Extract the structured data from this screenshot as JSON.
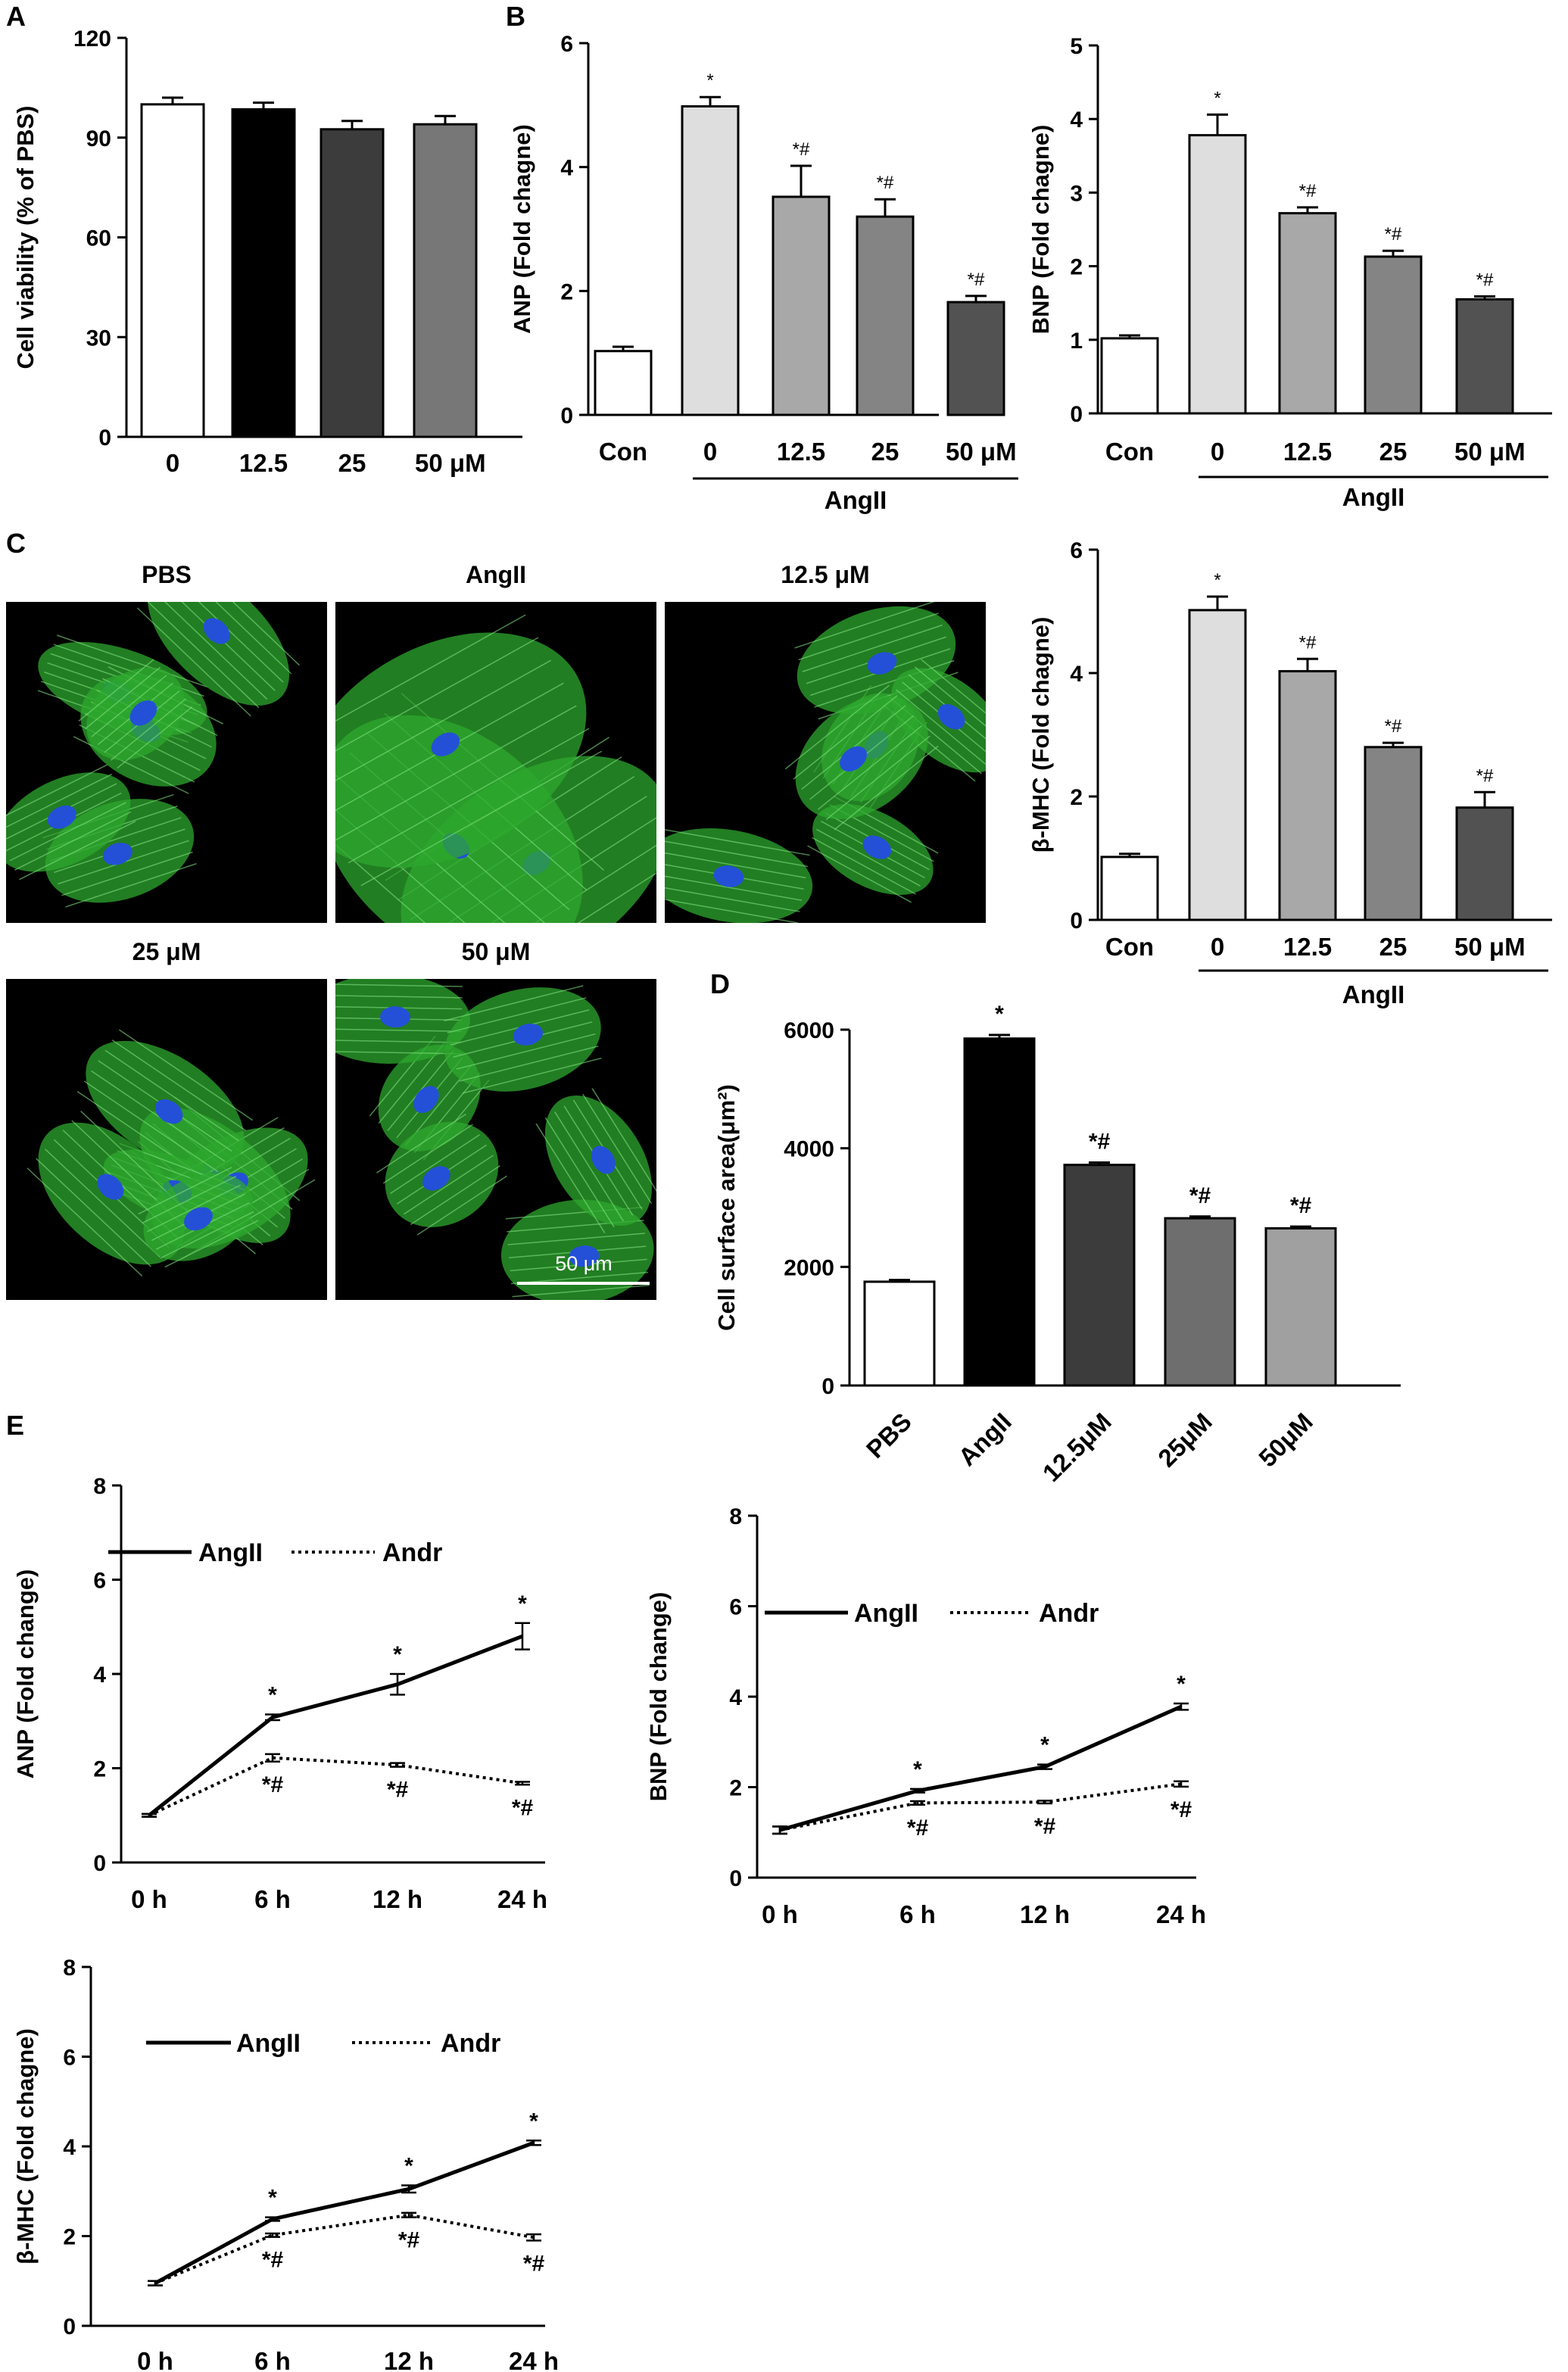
{
  "panel_letters": [
    "A",
    "B",
    "C",
    "D",
    "E"
  ],
  "chart_data": [
    {
      "id": "A",
      "type": "bar",
      "ylabel": "Cell viability (% of PBS)",
      "ylim": [
        0,
        120
      ],
      "yticks": [
        0,
        30,
        60,
        90,
        120
      ],
      "categories": [
        "0",
        "12.5",
        "25",
        "50 μM"
      ],
      "values": [
        100,
        98.5,
        92.5,
        94
      ],
      "errors": [
        2,
        2,
        2.5,
        2.5
      ],
      "colors": [
        "#ffffff",
        "#000000",
        "#3c3c3c",
        "#777777"
      ],
      "annotations": [
        "",
        "",
        "",
        ""
      ],
      "group_label": ""
    },
    {
      "id": "B-ANP",
      "type": "bar",
      "ylabel": "ANP (Fold chagne)",
      "ylim": [
        0,
        6
      ],
      "yticks": [
        0,
        2,
        4,
        6
      ],
      "categories": [
        "Con",
        "0",
        "12.5",
        "25",
        "50 μM"
      ],
      "values": [
        1.03,
        4.98,
        3.52,
        3.2,
        1.82
      ],
      "errors": [
        0.07,
        0.15,
        0.5,
        0.28,
        0.1
      ],
      "colors": [
        "#ffffff",
        "#dedede",
        "#a8a8a8",
        "#848484",
        "#525252"
      ],
      "annotations": [
        "",
        "*",
        "*#",
        "*#",
        "*#"
      ],
      "group_label": "AngII"
    },
    {
      "id": "B-BNP",
      "type": "bar",
      "ylabel": "BNP (Fold chagne)",
      "ylim": [
        0,
        5
      ],
      "yticks": [
        0,
        1,
        2,
        3,
        4,
        5
      ],
      "categories": [
        "Con",
        "0",
        "12.5",
        "25",
        "50 μM"
      ],
      "values": [
        1.02,
        3.78,
        2.72,
        2.13,
        1.55
      ],
      "errors": [
        0.04,
        0.28,
        0.08,
        0.08,
        0.04
      ],
      "colors": [
        "#ffffff",
        "#dedede",
        "#a8a8a8",
        "#848484",
        "#525252"
      ],
      "annotations": [
        "",
        "*",
        "*#",
        "*#",
        "*#"
      ],
      "group_label": "AngII"
    },
    {
      "id": "C-MHC",
      "type": "bar",
      "ylabel": "β-MHC (Fold chagne)",
      "ylim": [
        0,
        6
      ],
      "yticks": [
        0,
        2,
        4,
        6
      ],
      "categories": [
        "Con",
        "0",
        "12.5",
        "25",
        "50 μM"
      ],
      "values": [
        1.02,
        5.02,
        4.03,
        2.8,
        1.82
      ],
      "errors": [
        0.05,
        0.22,
        0.2,
        0.07,
        0.25
      ],
      "colors": [
        "#ffffff",
        "#dedede",
        "#a8a8a8",
        "#848484",
        "#525252"
      ],
      "annotations": [
        "",
        "*",
        "*#",
        "*#",
        "*#"
      ],
      "group_label": "AngII"
    },
    {
      "id": "D",
      "type": "bar",
      "ylabel": "Cell surface area(μm²)",
      "ylim": [
        0,
        6000
      ],
      "yticks": [
        0,
        2000,
        4000,
        6000
      ],
      "categories": [
        "PBS",
        "AngII",
        "12.5μM",
        "25μM",
        "50μM"
      ],
      "values": [
        1750,
        5850,
        3720,
        2820,
        2650
      ],
      "errors": [
        30,
        60,
        40,
        30,
        30
      ],
      "colors": [
        "#ffffff",
        "#000000",
        "#3c3c3c",
        "#6e6e6e",
        "#a0a0a0"
      ],
      "annotations": [
        "",
        "*",
        "*#",
        "*#",
        "*#"
      ],
      "group_label": ""
    },
    {
      "id": "E-ANP",
      "type": "line",
      "ylabel": "ANP (Fold change)",
      "ylim": [
        0,
        8
      ],
      "yticks": [
        0,
        2,
        4,
        6,
        8
      ],
      "x": [
        "0 h",
        "6 h",
        "12 h",
        "24 h"
      ],
      "series": [
        {
          "name": "AngII",
          "style": "solid",
          "values": [
            1.0,
            3.08,
            3.78,
            4.8
          ],
          "errors": [
            0.03,
            0.06,
            0.22,
            0.28
          ]
        },
        {
          "name": "Andr",
          "style": "dotted",
          "values": [
            1.0,
            2.22,
            2.07,
            1.68
          ],
          "errors": [
            0.03,
            0.08,
            0.04,
            0.03
          ]
        }
      ],
      "annot_top": [
        "",
        "*",
        "*",
        "*"
      ],
      "annot_bottom": [
        "",
        "*#",
        "*#",
        "*#"
      ]
    },
    {
      "id": "E-BNP",
      "type": "line",
      "ylabel": "BNP (Fold change)",
      "ylim": [
        0,
        8
      ],
      "yticks": [
        0,
        2,
        4,
        6,
        8
      ],
      "x": [
        "0 h",
        "6 h",
        "12 h",
        "24 h"
      ],
      "series": [
        {
          "name": "AngII",
          "style": "solid",
          "values": [
            1.05,
            1.92,
            2.45,
            3.78
          ],
          "errors": [
            0.08,
            0.04,
            0.05,
            0.07
          ]
        },
        {
          "name": "Andr",
          "style": "dotted",
          "values": [
            1.05,
            1.65,
            1.67,
            2.07
          ],
          "errors": [
            0.08,
            0.04,
            0.03,
            0.06
          ]
        }
      ],
      "annot_top": [
        "",
        "*",
        "*",
        "*"
      ],
      "annot_bottom": [
        "",
        "*#",
        "*#",
        "*#"
      ]
    },
    {
      "id": "E-MHC",
      "type": "line",
      "ylabel": "β-MHC (Fold chagne)",
      "ylim": [
        0,
        8
      ],
      "yticks": [
        0,
        2,
        4,
        6,
        8
      ],
      "x": [
        "0 h",
        "6 h",
        "12 h",
        "24 h"
      ],
      "series": [
        {
          "name": "AngII",
          "style": "solid",
          "values": [
            0.95,
            2.38,
            3.05,
            4.08
          ],
          "errors": [
            0.05,
            0.04,
            0.08,
            0.05
          ]
        },
        {
          "name": "Andr",
          "style": "dotted",
          "values": [
            0.95,
            2.02,
            2.47,
            1.97
          ],
          "errors": [
            0.05,
            0.04,
            0.05,
            0.07
          ]
        }
      ],
      "annot_top": [
        "",
        "*",
        "*",
        "*"
      ],
      "annot_bottom": [
        "",
        "*#",
        "*#",
        "*#"
      ]
    }
  ],
  "micrographs": {
    "titles": [
      "PBS",
      "AngII",
      "12.5 μM",
      "25 μM",
      "50 μM"
    ],
    "scale_bar_label": "50 μm",
    "fluorescence_colors": {
      "actin": "#2ea82e",
      "nuclei": "#2450d8",
      "background": "#000000"
    }
  }
}
